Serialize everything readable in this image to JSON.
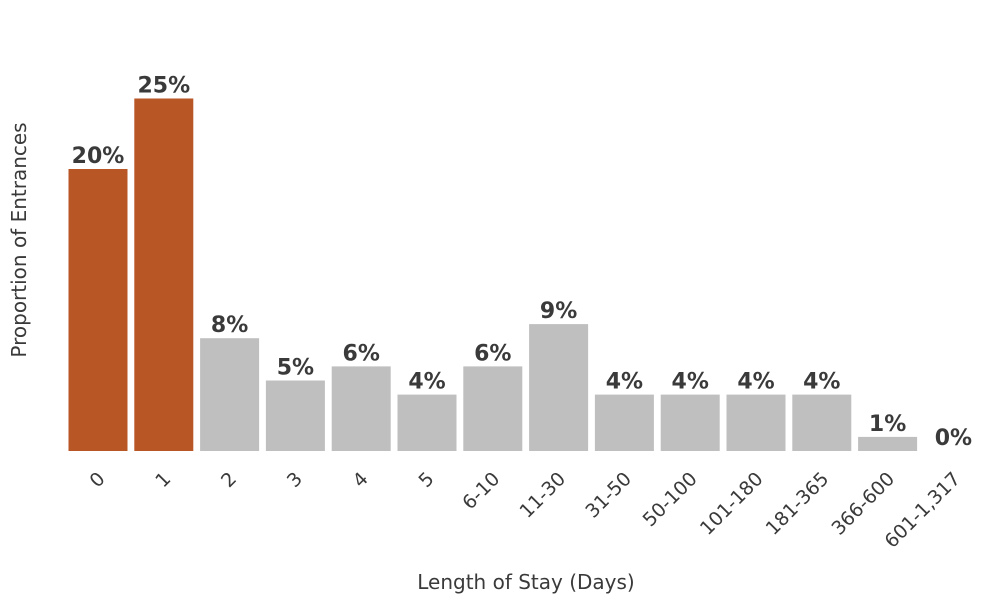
{
  "chart_data": {
    "type": "bar",
    "title": "",
    "xlabel": "Length of Stay (Days)",
    "ylabel": "Proportion of Entrances",
    "categories": [
      "0",
      "1",
      "2",
      "3",
      "4",
      "5",
      "6-10",
      "11-30",
      "31-50",
      "50-100",
      "101-180",
      "181-365",
      "366-600",
      "601-1,317"
    ],
    "values": [
      20,
      25,
      8,
      5,
      6,
      4,
      6,
      9,
      4,
      4,
      4,
      4,
      1,
      0
    ],
    "value_labels": [
      "20%",
      "25%",
      "8%",
      "5%",
      "6%",
      "4%",
      "6%",
      "9%",
      "4%",
      "4%",
      "4%",
      "4%",
      "1%",
      "0%"
    ],
    "highlight_indices": [
      0,
      1
    ],
    "colors": {
      "highlight": "#b85626",
      "default": "#bfbfbf",
      "text": "#3a3a3a"
    },
    "grid": false,
    "legend": "none",
    "ylim": [
      0,
      25
    ]
  }
}
